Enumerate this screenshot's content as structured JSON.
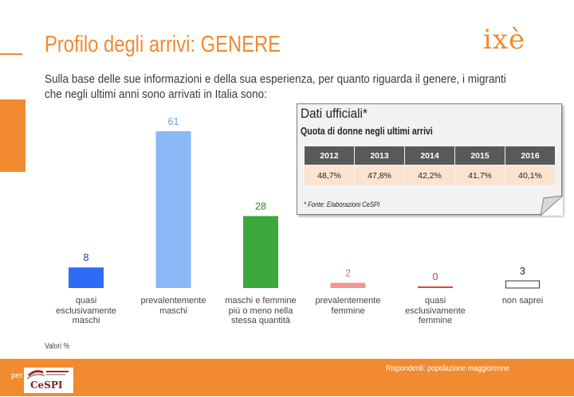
{
  "header": {
    "title": "Profilo degli arrivi: GENERE",
    "logo_text": "ixè",
    "question": "Sulla base delle sue informazioni e della sua esperienza, per quanto riguarda il genere, i migranti che negli ultimi anni sono arrivati in Italia sono:"
  },
  "chart_data": {
    "type": "bar",
    "categories": [
      "quasi esclusivamente maschi",
      "prevalentemente maschi",
      "maschi e femmine più o meno nella stessa quantità",
      "prevalentemente femmine",
      "quasi esclusivamente femmine",
      "non saprei"
    ],
    "category_lines": [
      [
        "quasi",
        "esclusivamente",
        "maschi"
      ],
      [
        "prevalentemente",
        "maschi"
      ],
      [
        "maschi e femmine",
        "più o meno nella",
        "stessa quantità"
      ],
      [
        "prevalentemente",
        "femmine"
      ],
      [
        "quasi",
        "esclusivamente",
        "femmine"
      ],
      [
        "non saprei"
      ]
    ],
    "values": [
      8,
      61,
      28,
      2,
      0,
      3
    ],
    "value_labels": [
      "8",
      "61",
      "28",
      "2",
      "0",
      "3"
    ],
    "colors": [
      "#2e6cf6",
      "#8bb8f6",
      "#3ca83c",
      "#f29696",
      "#d94545",
      "#ffffff"
    ],
    "label_colors": [
      "#1e3f9e",
      "#6f9fe0",
      "#2a8a2a",
      "#e07070",
      "#c83b3b",
      "#222222"
    ],
    "ylim": [
      0,
      61
    ],
    "grid": false,
    "note": "Valori %"
  },
  "official_box": {
    "title": "Dati ufficiali*",
    "subtitle": "Quota di donne negli ultimi arrivi",
    "years": [
      "2012",
      "2013",
      "2014",
      "2015",
      "2016"
    ],
    "values": [
      "48,7%",
      "47,8%",
      "42,2%",
      "41,7%",
      "40,1%"
    ],
    "source": "* Fonte: Elaborazioni CeSPI"
  },
  "footer": {
    "per_label": "per",
    "cespi_text": "CeSPI",
    "respondents": "Rispondenti: popolazione maggiorenne"
  },
  "colors": {
    "accent": "#f28a30",
    "header_cell": "#595959",
    "value_cell": "#fbe3d2"
  }
}
